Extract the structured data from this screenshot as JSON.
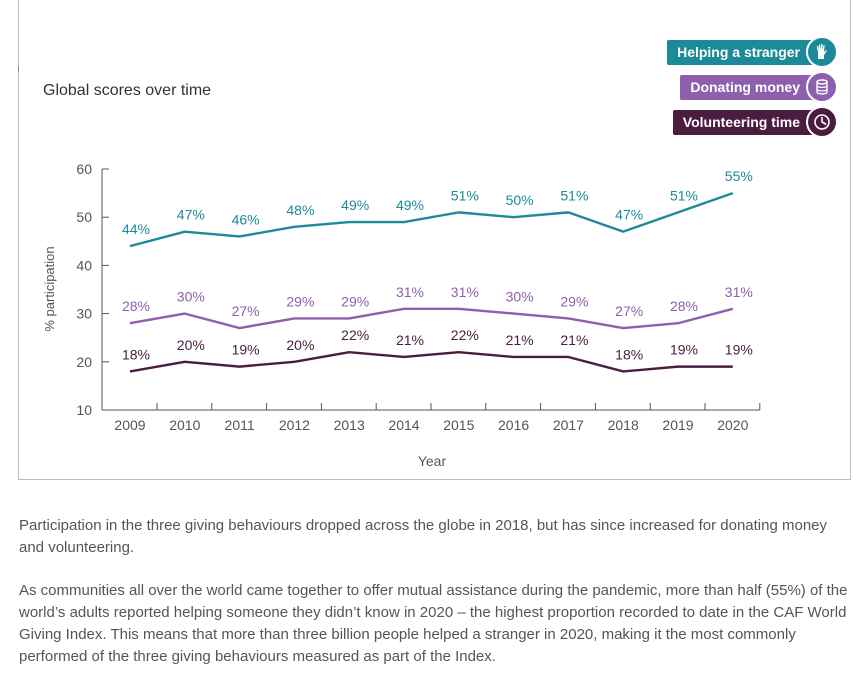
{
  "chart_data": {
    "type": "line",
    "title": "Global scores over time",
    "xlabel": "Year",
    "ylabel": "% participation",
    "ylim": [
      10,
      60
    ],
    "yticks": [
      10,
      20,
      30,
      40,
      50,
      60
    ],
    "x": [
      2009,
      2010,
      2011,
      2012,
      2013,
      2014,
      2015,
      2016,
      2017,
      2018,
      2019,
      2020
    ],
    "series": [
      {
        "name": "Helping a stranger",
        "color": "#1c8a99",
        "icon": "hand-icon",
        "values": [
          44,
          47,
          46,
          48,
          49,
          49,
          51,
          50,
          51,
          47,
          51,
          55
        ],
        "labels": [
          "44%",
          "47%",
          "46%",
          "48%",
          "49%",
          "49%",
          "51%",
          "50%",
          "51%",
          "47%",
          "51%",
          "55%"
        ]
      },
      {
        "name": "Donating money",
        "color": "#8c60ad",
        "icon": "coins-icon",
        "values": [
          28,
          30,
          27,
          29,
          29,
          31,
          31,
          30,
          29,
          27,
          28,
          31
        ],
        "labels": [
          "28%",
          "30%",
          "27%",
          "29%",
          "29%",
          "31%",
          "31%",
          "30%",
          "29%",
          "27%",
          "28%",
          "31%"
        ]
      },
      {
        "name": "Volunteering time",
        "color": "#4a1d3e",
        "icon": "clock-icon",
        "values": [
          18,
          20,
          19,
          20,
          22,
          21,
          22,
          21,
          21,
          18,
          19,
          19
        ],
        "labels": [
          "18%",
          "20%",
          "19%",
          "20%",
          "22%",
          "21%",
          "22%",
          "21%",
          "21%",
          "18%",
          "19%",
          "19%"
        ]
      }
    ],
    "legend": "top-right",
    "grid": false
  },
  "captions": {
    "paragraph_1": "Participation in the three giving behaviours dropped across the globe in 2018, but has since increased for donating money and volunteering.",
    "paragraph_2": "As communities all over the world came together to offer mutual assistance during the pandemic, more than half (55%) of the world’s adults reported helping someone they didn’t know in 2020 – the highest proportion recorded to date in the CAF World Giving Index. This means that more than three billion people helped a stranger in 2020, making it the most commonly performed of the three giving behaviours measured as part of the Index."
  }
}
